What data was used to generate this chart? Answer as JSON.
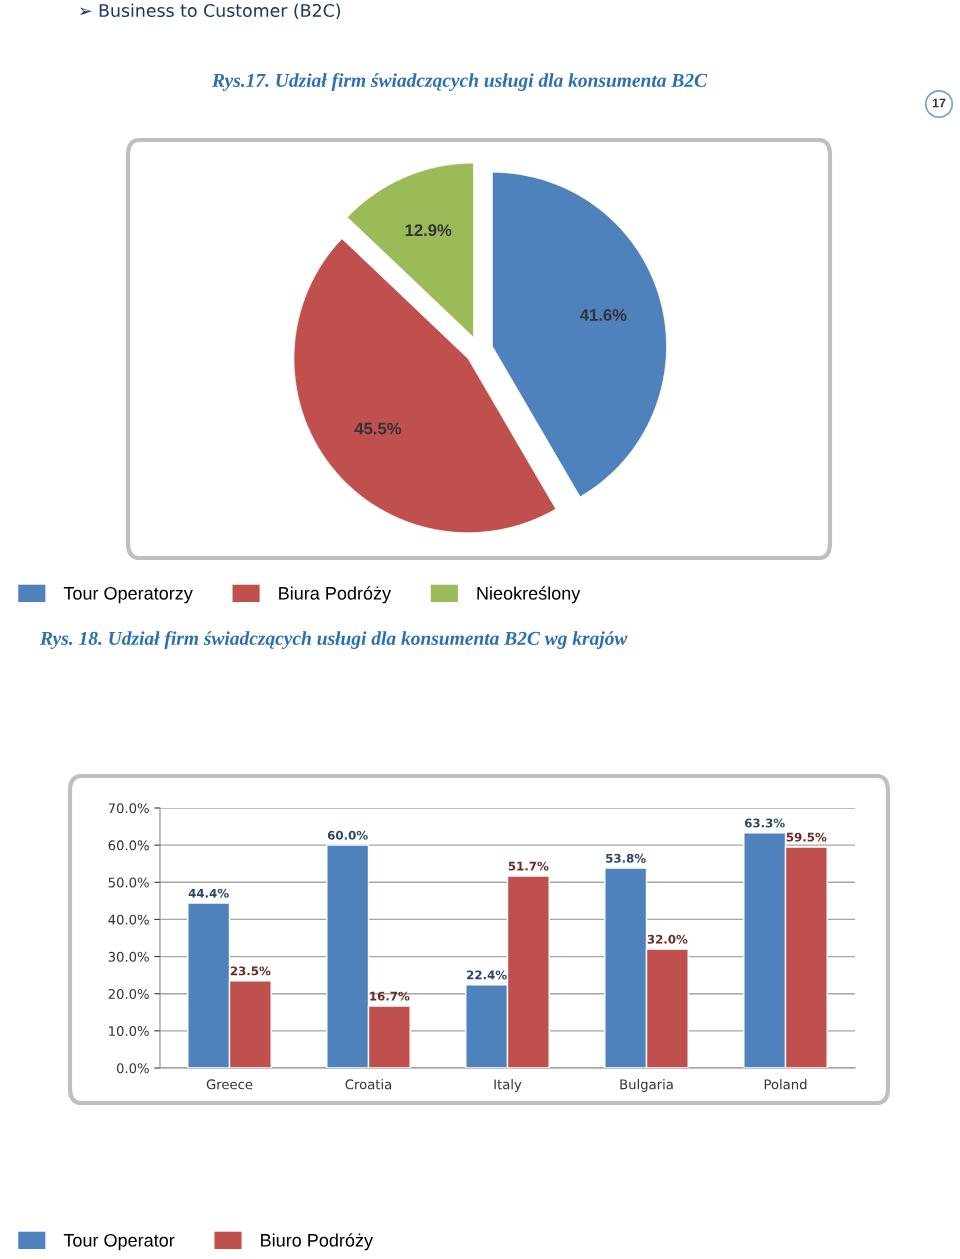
{
  "chart_data": [
    {
      "type": "pie",
      "title": "Rys.17. Udział firm świadczących usługi dla konsumenta B2C",
      "annotations": [
        "➢ Business to Customer (B2C)",
        "17"
      ],
      "categories": [
        "Tour Operatorzy",
        "Biura Podróży",
        "Nieokreślony"
      ],
      "values": [
        41.6,
        45.5,
        12.9
      ],
      "colors": [
        "#4f81bd",
        "#c0504d",
        "#9bbb59"
      ],
      "value_labels": [
        "41.6%",
        "45.5%",
        "12.9%"
      ],
      "legend": "bottom"
    },
    {
      "type": "bar",
      "title": "Rys. 18. Udział firm świadczących usługi dla konsumenta B2C wg krajów",
      "categories": [
        "Greece",
        "Croatia",
        "Italy",
        "Bulgaria",
        "Poland"
      ],
      "series": [
        {
          "name": "Tour Operator",
          "color": "#4f81bd",
          "values": [
            44.4,
            60.0,
            22.4,
            53.8,
            63.3
          ],
          "value_labels": [
            "44.4%",
            "60.0%",
            "22.4%",
            "53.8%",
            "63.3%"
          ]
        },
        {
          "name": "Biuro Podróży",
          "color": "#c0504d",
          "values": [
            23.5,
            16.7,
            51.7,
            32.0,
            59.5
          ],
          "value_labels": [
            "23.5%",
            "16.7%",
            "51.7%",
            "32.0%",
            "59.5%"
          ]
        }
      ],
      "ylim": [
        0,
        70
      ],
      "yticks": [
        {
          "value": 0,
          "label": "0.0%"
        },
        {
          "value": 10,
          "label": "10.0%"
        },
        {
          "value": 20,
          "label": "20.0%"
        },
        {
          "value": 30,
          "label": "30.0%"
        },
        {
          "value": 40,
          "label": "40.0%"
        },
        {
          "value": 50,
          "label": "50.0%"
        },
        {
          "value": 60,
          "label": "60.0%"
        },
        {
          "value": 70,
          "label": "70.0%"
        }
      ],
      "grid": "y",
      "legend": "bottom"
    }
  ]
}
